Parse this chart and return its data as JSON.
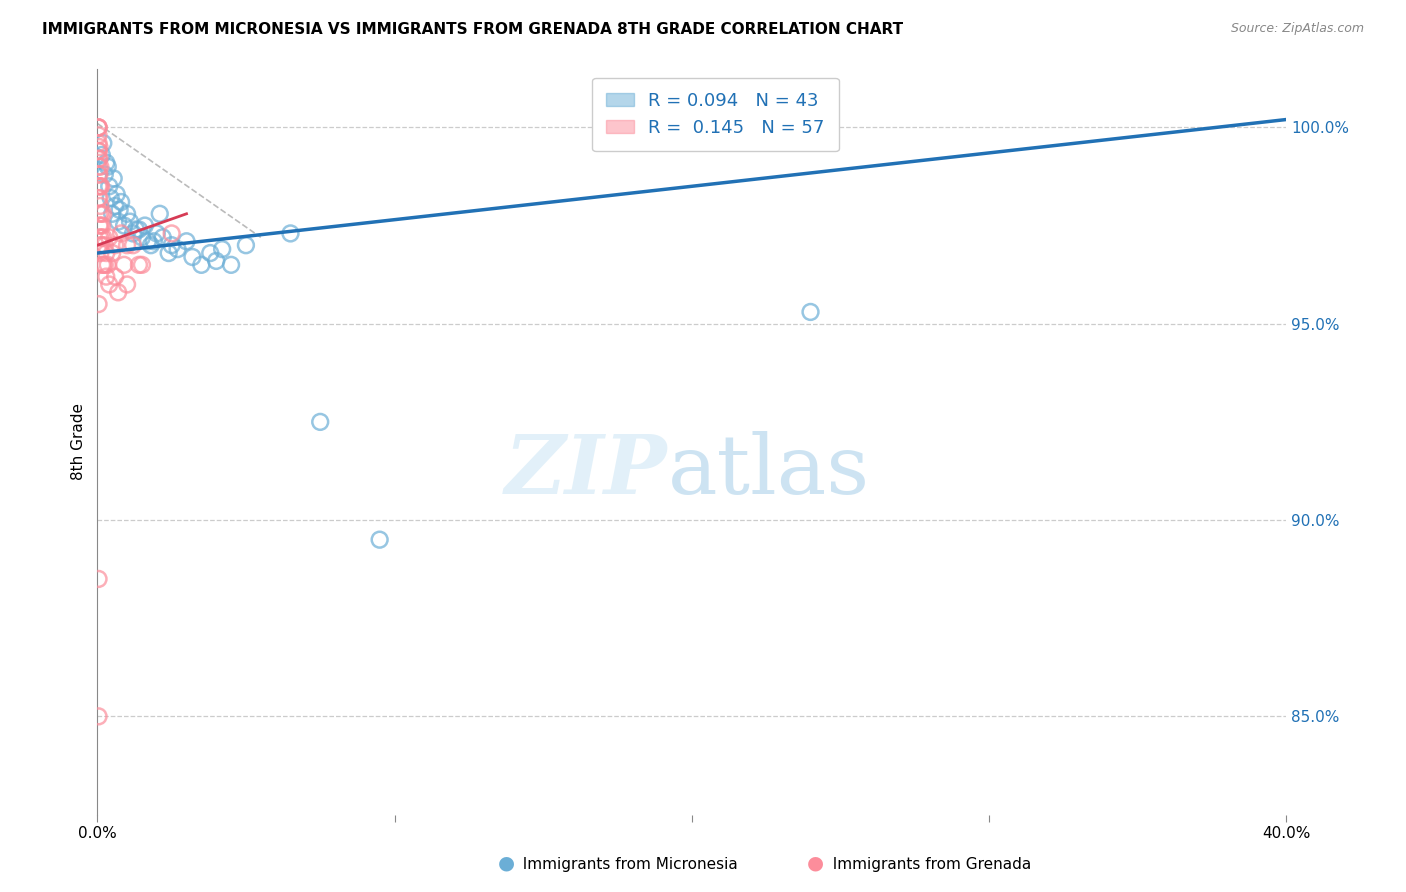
{
  "title": "IMMIGRANTS FROM MICRONESIA VS IMMIGRANTS FROM GRENADA 8TH GRADE CORRELATION CHART",
  "source": "Source: ZipAtlas.com",
  "ylabel": "8th Grade",
  "y_ticks": [
    85.0,
    90.0,
    95.0,
    100.0
  ],
  "y_tick_labels": [
    "85.0%",
    "90.0%",
    "95.0%",
    "100.0%"
  ],
  "x_range": [
    0.0,
    40.0
  ],
  "y_range": [
    82.5,
    101.5
  ],
  "r_micronesia": 0.094,
  "n_micronesia": 43,
  "r_grenada": 0.145,
  "n_grenada": 57,
  "color_micronesia": "#6baed6",
  "color_grenada": "#fc8d9b",
  "trendline_color_micronesia": "#2171b5",
  "trendline_color_grenada": "#d63b55",
  "mic_trendline_x": [
    0.0,
    40.0
  ],
  "mic_trendline_y": [
    96.8,
    100.2
  ],
  "gren_trendline_x": [
    0.0,
    3.0
  ],
  "gren_trendline_y": [
    97.0,
    97.8
  ],
  "ref_line_x": [
    0.0,
    5.5
  ],
  "ref_line_y": [
    100.1,
    97.2
  ],
  "micronesia_x": [
    0.15,
    0.2,
    0.25,
    0.3,
    0.35,
    0.4,
    0.45,
    0.5,
    0.55,
    0.6,
    0.65,
    0.7,
    0.75,
    0.8,
    0.9,
    1.0,
    1.1,
    1.2,
    1.3,
    1.5,
    1.6,
    1.7,
    1.8,
    2.0,
    2.1,
    2.2,
    2.4,
    2.5,
    2.7,
    3.0,
    3.2,
    3.5,
    3.8,
    4.0,
    4.2,
    4.5,
    5.0,
    6.5,
    7.5,
    9.5,
    24.0,
    1.4,
    1.9
  ],
  "micronesia_y": [
    99.3,
    99.6,
    98.8,
    99.1,
    99.0,
    98.5,
    98.2,
    97.8,
    98.7,
    98.0,
    98.3,
    97.6,
    97.9,
    98.1,
    97.5,
    97.8,
    97.6,
    97.3,
    97.4,
    97.2,
    97.5,
    97.1,
    97.0,
    97.3,
    97.8,
    97.2,
    96.8,
    97.0,
    96.9,
    97.1,
    96.7,
    96.5,
    96.8,
    96.6,
    96.9,
    96.5,
    97.0,
    97.3,
    92.5,
    89.5,
    95.3,
    97.4,
    97.1
  ],
  "grenada_x": [
    0.04,
    0.04,
    0.04,
    0.04,
    0.04,
    0.04,
    0.04,
    0.04,
    0.04,
    0.04,
    0.04,
    0.07,
    0.07,
    0.07,
    0.07,
    0.07,
    0.07,
    0.07,
    0.07,
    0.1,
    0.1,
    0.1,
    0.1,
    0.1,
    0.1,
    0.13,
    0.13,
    0.13,
    0.16,
    0.16,
    0.16,
    0.2,
    0.2,
    0.2,
    0.25,
    0.25,
    0.3,
    0.3,
    0.35,
    0.4,
    0.4,
    0.5,
    0.6,
    0.6,
    0.7,
    0.8,
    0.9,
    1.0,
    1.0,
    1.2,
    1.4,
    1.5,
    2.5,
    0.04,
    0.04,
    0.04,
    0.04
  ],
  "grenada_y": [
    100.0,
    100.0,
    100.0,
    99.8,
    99.6,
    99.4,
    99.2,
    99.0,
    98.8,
    98.5,
    98.2,
    99.5,
    99.2,
    98.8,
    98.5,
    98.2,
    97.8,
    97.5,
    97.2,
    99.0,
    98.5,
    98.0,
    97.5,
    97.0,
    96.8,
    98.5,
    97.8,
    97.2,
    97.5,
    97.0,
    96.5,
    97.8,
    97.2,
    96.5,
    97.0,
    96.5,
    96.8,
    96.2,
    96.5,
    97.2,
    96.0,
    96.8,
    97.0,
    96.2,
    95.8,
    97.3,
    96.5,
    97.0,
    96.0,
    97.0,
    96.5,
    96.5,
    97.3,
    95.5,
    88.5,
    85.0,
    99.4
  ]
}
